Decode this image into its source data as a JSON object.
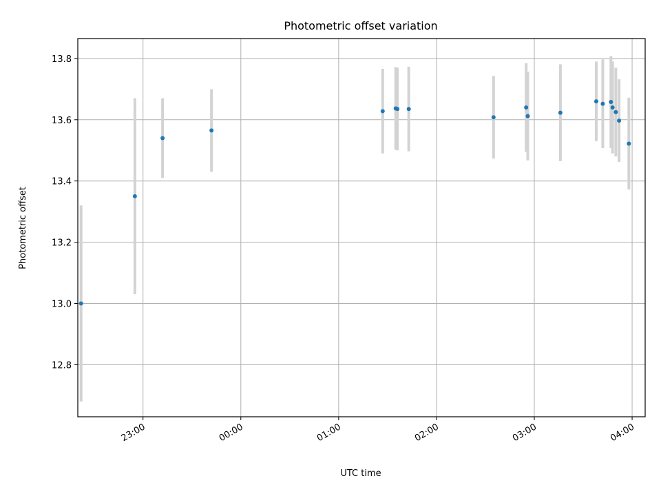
{
  "chart_data": {
    "type": "scatter",
    "title": "Photometric offset variation",
    "xlabel": "UTC time",
    "ylabel": "Photometric offset",
    "x_tick_labels": [
      "23:00",
      "00:00",
      "01:00",
      "02:00",
      "03:00",
      "04:00"
    ],
    "x_tick_times": [
      "23:00",
      "00:00",
      "01:00",
      "02:00",
      "03:00",
      "04:00"
    ],
    "y_tick_labels": [
      "12.8",
      "13.0",
      "13.2",
      "13.4",
      "13.6",
      "13.8"
    ],
    "y_ticks": [
      12.8,
      13.0,
      13.2,
      13.4,
      13.6,
      13.8
    ],
    "xlim": [
      "22:20",
      "04:08"
    ],
    "ylim": [
      12.63,
      13.865
    ],
    "grid": true,
    "colors": {
      "point": "#1f77b4",
      "errorbar": "#d3d3d3",
      "grid": "#b0b0b0"
    },
    "points": [
      {
        "x": "22:22",
        "y": 13.0,
        "err": 0.32
      },
      {
        "x": "22:55",
        "y": 13.35,
        "err": 0.32
      },
      {
        "x": "23:12",
        "y": 13.54,
        "err": 0.13
      },
      {
        "x": "23:42",
        "y": 13.565,
        "err": 0.135
      },
      {
        "x": "01:27",
        "y": 13.628,
        "err": 0.138
      },
      {
        "x": "01:35",
        "y": 13.637,
        "err": 0.135
      },
      {
        "x": "01:36",
        "y": 13.635,
        "err": 0.135
      },
      {
        "x": "01:43",
        "y": 13.635,
        "err": 0.138
      },
      {
        "x": "02:35",
        "y": 13.608,
        "err": 0.135
      },
      {
        "x": "02:55",
        "y": 13.64,
        "err": 0.145
      },
      {
        "x": "02:56",
        "y": 13.612,
        "err": 0.145
      },
      {
        "x": "03:16",
        "y": 13.623,
        "err": 0.158
      },
      {
        "x": "03:38",
        "y": 13.66,
        "err": 0.13
      },
      {
        "x": "03:42",
        "y": 13.652,
        "err": 0.145
      },
      {
        "x": "03:47",
        "y": 13.658,
        "err": 0.15
      },
      {
        "x": "03:48",
        "y": 13.64,
        "err": 0.15
      },
      {
        "x": "03:50",
        "y": 13.625,
        "err": 0.145
      },
      {
        "x": "03:52",
        "y": 13.597,
        "err": 0.135
      },
      {
        "x": "03:58",
        "y": 13.522,
        "err": 0.15
      }
    ]
  }
}
